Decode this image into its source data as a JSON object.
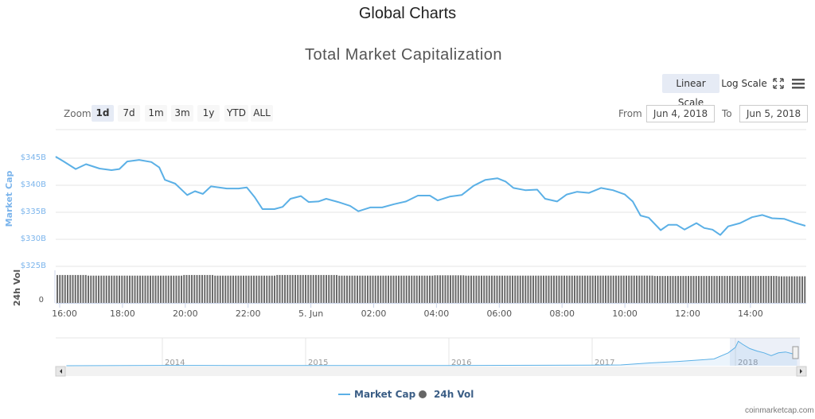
{
  "header": {
    "title": "Global Charts"
  },
  "chart": {
    "title": "Total Market Capitalization"
  },
  "scale": {
    "linear": "Linear Scale",
    "log": "Log Scale"
  },
  "icons": {
    "fullscreen": "fullscreen-icon",
    "menu": "menu-icon"
  },
  "zoom": {
    "label": "Zoom",
    "buttons": [
      "1d",
      "7d",
      "1m",
      "3m",
      "1y",
      "YTD",
      "ALL"
    ],
    "selected": "1d"
  },
  "range": {
    "from_label": "From",
    "from_value": "Jun 4, 2018",
    "to_label": "To",
    "to_value": "Jun 5, 2018"
  },
  "credit": "coinmarketcap.com",
  "colors": {
    "line": "#5bb0e6",
    "bars": "#666666",
    "axis_label": "#7cb5ec"
  },
  "chart_data": {
    "type": "line",
    "title": "Total Market Capitalization",
    "ylabel": "Market Cap",
    "ylim": [
      325,
      350
    ],
    "yticks": [
      "$345B",
      "$340B",
      "$335B",
      "$330B",
      "$325B"
    ],
    "ytick_values": [
      345,
      340,
      335,
      330,
      325
    ],
    "x_unit": "hours since Jun 4 16:00",
    "xticks": [
      "16:00",
      "18:00",
      "20:00",
      "22:00",
      "5. Jun",
      "02:00",
      "04:00",
      "06:00",
      "08:00",
      "10:00",
      "12:00",
      "14:00"
    ],
    "xtick_values": [
      0,
      2,
      4,
      6,
      8,
      10,
      12,
      14,
      16,
      18,
      20,
      22
    ],
    "xlim": [
      -0.13,
      23.78
    ],
    "series": [
      {
        "name": "Market Cap",
        "points": [
          [
            -0.13,
            345.0
          ],
          [
            0.13,
            344.1
          ],
          [
            0.51,
            342.7
          ],
          [
            0.84,
            343.6
          ],
          [
            1.27,
            342.8
          ],
          [
            1.65,
            342.5
          ],
          [
            1.9,
            342.7
          ],
          [
            2.15,
            344.1
          ],
          [
            2.53,
            344.4
          ],
          [
            2.92,
            344.0
          ],
          [
            3.17,
            343.0
          ],
          [
            3.35,
            340.7
          ],
          [
            3.68,
            340.0
          ],
          [
            4.06,
            337.9
          ],
          [
            4.31,
            338.6
          ],
          [
            4.56,
            338.1
          ],
          [
            4.82,
            339.5
          ],
          [
            5.32,
            339.1
          ],
          [
            5.7,
            339.1
          ],
          [
            5.96,
            339.3
          ],
          [
            6.21,
            337.5
          ],
          [
            6.46,
            335.3
          ],
          [
            6.84,
            335.3
          ],
          [
            7.1,
            335.7
          ],
          [
            7.35,
            337.2
          ],
          [
            7.68,
            337.7
          ],
          [
            7.93,
            336.6
          ],
          [
            8.24,
            336.7
          ],
          [
            8.49,
            337.2
          ],
          [
            8.87,
            336.6
          ],
          [
            9.25,
            335.9
          ],
          [
            9.51,
            334.9
          ],
          [
            9.89,
            335.6
          ],
          [
            10.27,
            335.6
          ],
          [
            10.65,
            336.2
          ],
          [
            11.03,
            336.7
          ],
          [
            11.41,
            337.8
          ],
          [
            11.79,
            337.8
          ],
          [
            12.04,
            336.9
          ],
          [
            12.42,
            337.6
          ],
          [
            12.8,
            337.9
          ],
          [
            13.18,
            339.6
          ],
          [
            13.56,
            340.7
          ],
          [
            13.94,
            341.0
          ],
          [
            14.2,
            340.4
          ],
          [
            14.45,
            339.2
          ],
          [
            14.83,
            338.8
          ],
          [
            15.21,
            338.9
          ],
          [
            15.46,
            337.2
          ],
          [
            15.84,
            336.7
          ],
          [
            16.15,
            338.0
          ],
          [
            16.48,
            338.5
          ],
          [
            16.86,
            338.3
          ],
          [
            17.24,
            339.2
          ],
          [
            17.62,
            338.8
          ],
          [
            18.0,
            338.0
          ],
          [
            18.25,
            336.7
          ],
          [
            18.5,
            334.1
          ],
          [
            18.76,
            333.7
          ],
          [
            19.14,
            331.4
          ],
          [
            19.39,
            332.4
          ],
          [
            19.65,
            332.4
          ],
          [
            19.9,
            331.5
          ],
          [
            20.28,
            332.7
          ],
          [
            20.53,
            331.8
          ],
          [
            20.79,
            331.5
          ],
          [
            21.04,
            330.5
          ],
          [
            21.29,
            332.1
          ],
          [
            21.67,
            332.7
          ],
          [
            22.05,
            333.8
          ],
          [
            22.38,
            334.2
          ],
          [
            22.69,
            333.6
          ],
          [
            23.07,
            333.5
          ],
          [
            23.45,
            332.7
          ],
          [
            23.75,
            332.2
          ]
        ]
      },
      {
        "name": "24h Vol",
        "ylabel": "24h Vol",
        "ytick": "0",
        "relative_hourly_levels": [
          0.88,
          0.86,
          0.86,
          0.86,
          0.88,
          0.86,
          0.86,
          0.88,
          0.88,
          0.86,
          0.86,
          0.86,
          0.87,
          0.86,
          0.86,
          0.86,
          0.86,
          0.86,
          0.86,
          0.85,
          0.85,
          0.85,
          0.85,
          0.84
        ]
      }
    ],
    "legend": {
      "items": [
        "Market Cap",
        "24h Vol"
      ],
      "placement": "bottom"
    },
    "navigator": {
      "year_labels": [
        "2014",
        "2015",
        "2016",
        "2017",
        "2018"
      ],
      "year_values": [
        2014,
        2015,
        2016,
        2017,
        2018
      ],
      "points": [
        [
          2013.33,
          1
        ],
        [
          2014.0,
          10
        ],
        [
          2014.5,
          8
        ],
        [
          2015,
          5
        ],
        [
          2016,
          7
        ],
        [
          2017,
          18
        ],
        [
          2017.2,
          25
        ],
        [
          2017.4,
          90
        ],
        [
          2017.6,
          140
        ],
        [
          2017.85,
          220
        ],
        [
          2017.95,
          420
        ],
        [
          2018.0,
          600
        ],
        [
          2018.02,
          800
        ],
        [
          2018.05,
          700
        ],
        [
          2018.1,
          560
        ],
        [
          2018.15,
          480
        ],
        [
          2018.2,
          420
        ],
        [
          2018.25,
          330
        ],
        [
          2018.3,
          420
        ],
        [
          2018.35,
          450
        ],
        [
          2018.4,
          390
        ],
        [
          2018.43,
          335
        ]
      ]
    }
  }
}
